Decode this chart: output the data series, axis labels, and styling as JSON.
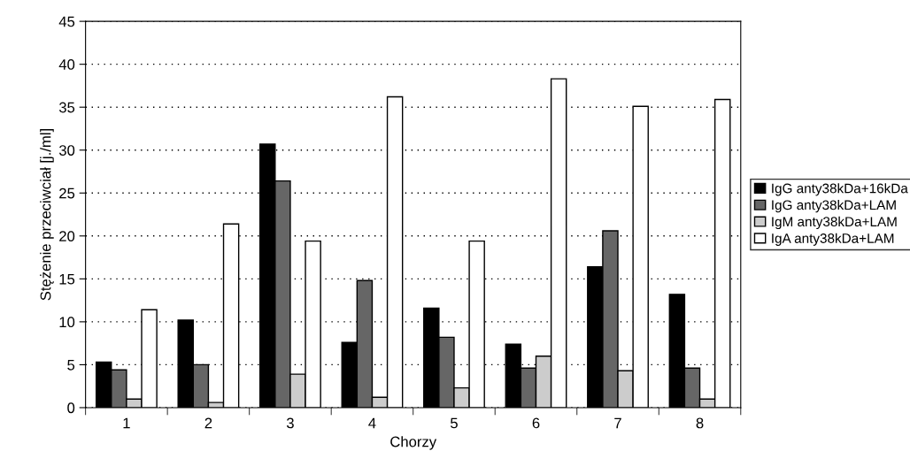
{
  "chart_data": {
    "type": "bar",
    "xlabel": "Chorzy",
    "ylabel": "Stężenie przeciwciał [j./ml]",
    "categories": [
      "1",
      "2",
      "3",
      "4",
      "5",
      "6",
      "7",
      "8"
    ],
    "series": [
      {
        "name": "IgG anty38kDa+16kDa",
        "color": "#000000",
        "values": [
          5.3,
          10.2,
          30.7,
          7.6,
          11.6,
          7.4,
          16.4,
          13.2
        ]
      },
      {
        "name": "IgG anty38kDa+LAM",
        "color": "#666666",
        "values": [
          4.4,
          5.0,
          26.4,
          14.8,
          8.2,
          4.6,
          20.6,
          4.6
        ]
      },
      {
        "name": "IgM anty38kDa+LAM",
        "color": "#cccccc",
        "values": [
          1.0,
          0.6,
          3.9,
          1.2,
          2.3,
          6.0,
          4.3,
          1.0
        ]
      },
      {
        "name": "IgA anty38kDa+LAM",
        "color": "#ffffff",
        "values": [
          11.4,
          21.4,
          19.4,
          36.2,
          19.4,
          38.3,
          35.1,
          35.9
        ]
      }
    ],
    "ylim": [
      0,
      45
    ],
    "yticks": [
      0,
      5,
      10,
      15,
      20,
      25,
      30,
      35,
      40,
      45
    ],
    "grid": "y",
    "legend": "right"
  }
}
